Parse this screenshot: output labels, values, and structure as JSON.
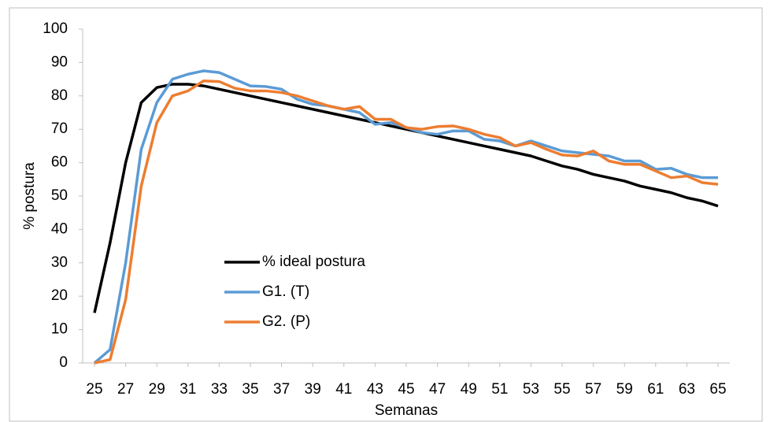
{
  "chart_data": {
    "type": "line",
    "x_label": "Semanas",
    "y_label": "% postura",
    "x": [
      25,
      26,
      27,
      28,
      29,
      30,
      31,
      32,
      33,
      34,
      35,
      36,
      37,
      38,
      39,
      40,
      41,
      42,
      43,
      44,
      45,
      46,
      47,
      48,
      49,
      50,
      51,
      52,
      53,
      54,
      55,
      56,
      57,
      58,
      59,
      60,
      61,
      62,
      63,
      64,
      65
    ],
    "xlim": [
      25,
      65
    ],
    "xticks": [
      25,
      27,
      29,
      31,
      33,
      35,
      37,
      39,
      41,
      43,
      45,
      47,
      49,
      51,
      53,
      55,
      57,
      59,
      61,
      63,
      65
    ],
    "ylim": [
      0,
      100
    ],
    "yticks": [
      0,
      10,
      20,
      30,
      40,
      50,
      60,
      70,
      80,
      90,
      100
    ],
    "series": [
      {
        "name": "% ideal postura",
        "color": "#000000",
        "values": [
          15,
          36,
          60,
          78,
          82.5,
          83.5,
          83.5,
          83,
          82,
          81,
          80,
          79,
          78,
          77,
          76,
          75,
          74,
          73,
          72,
          71,
          70,
          69,
          68,
          67,
          66,
          65,
          64,
          63,
          62,
          60.5,
          59,
          58,
          56.5,
          55.5,
          54.5,
          53,
          52,
          51,
          49.5,
          48.5,
          47
        ]
      },
      {
        "name": "G1. (T)",
        "color": "#5b9bd5",
        "values": [
          0,
          4,
          30,
          64,
          78,
          85,
          86.5,
          87.5,
          87,
          85,
          83,
          82.8,
          82,
          79,
          77.5,
          77,
          76,
          75,
          71.5,
          72,
          70.5,
          69,
          68.5,
          69.5,
          69.5,
          67,
          66.5,
          65,
          66.5,
          65,
          63.5,
          63,
          62.5,
          62,
          60.5,
          60.5,
          58,
          58.3,
          56.5,
          55.5,
          55.5
        ]
      },
      {
        "name": "G2. (P)",
        "color": "#ed7d31",
        "values": [
          0,
          1,
          19,
          53,
          72,
          80,
          81.5,
          84.5,
          84.3,
          82.3,
          81.5,
          81.5,
          81,
          80,
          78.5,
          77,
          76,
          76.8,
          73,
          73,
          70.5,
          70,
          70.8,
          71,
          70,
          68.5,
          67.5,
          65,
          66,
          64,
          62.3,
          62,
          63.5,
          60.5,
          59.5,
          59.5,
          57.5,
          55.5,
          56,
          54,
          53.5
        ]
      }
    ]
  }
}
